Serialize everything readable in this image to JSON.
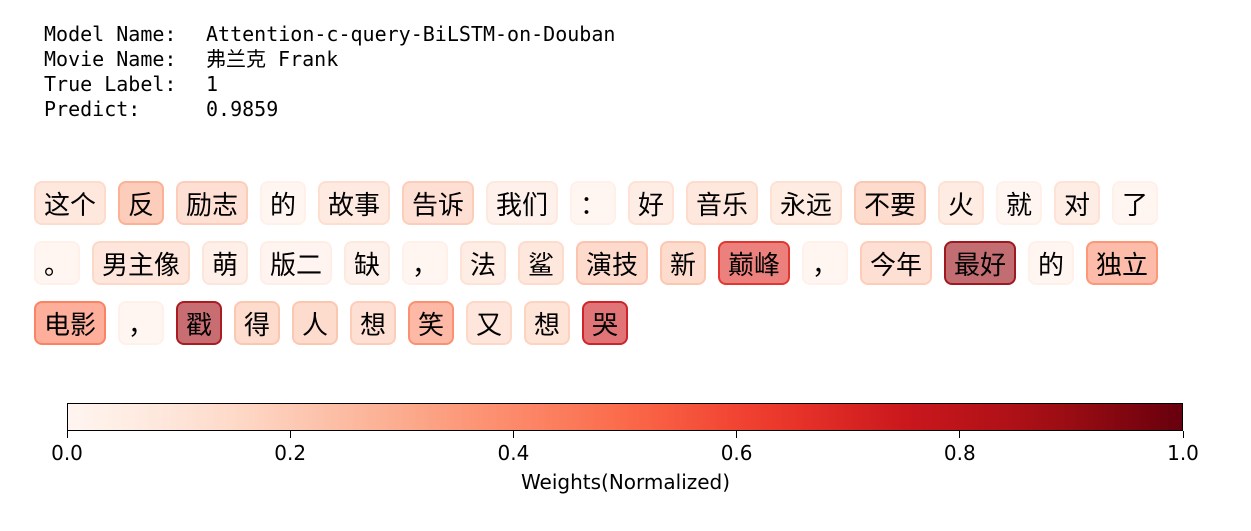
{
  "header": {
    "rows": [
      {
        "key": "Model Name:",
        "value": "Attention-c-query-BiLSTM-on-Douban"
      },
      {
        "key": "Movie Name:",
        "value": "弗兰克 Frank"
      },
      {
        "key": "True Label:",
        "value": "1"
      },
      {
        "key": "Predict:",
        "value": "0.9859"
      }
    ]
  },
  "colors": {
    "cmap": [
      "#fff5f0",
      "#fee0d2",
      "#fcbba1",
      "#fc9272",
      "#fb6a4a",
      "#ef3b2c",
      "#cb181d",
      "#a50f15",
      "#67000d"
    ]
  },
  "chart_data": {
    "type": "heatmap",
    "tokens": [
      {
        "text": "这个",
        "weight": 0.15
      },
      {
        "text": "反",
        "weight": 0.3
      },
      {
        "text": "励志",
        "weight": 0.2
      },
      {
        "text": "的",
        "weight": 0.03
      },
      {
        "text": "故事",
        "weight": 0.14
      },
      {
        "text": "告诉",
        "weight": 0.2
      },
      {
        "text": "我们",
        "weight": 0.08
      },
      {
        "text": "：",
        "weight": 0.03
      },
      {
        "text": "好",
        "weight": 0.12
      },
      {
        "text": "音乐",
        "weight": 0.15
      },
      {
        "text": "永远",
        "weight": 0.13
      },
      {
        "text": "不要",
        "weight": 0.22
      },
      {
        "text": "火",
        "weight": 0.13
      },
      {
        "text": "就",
        "weight": 0.03
      },
      {
        "text": "对",
        "weight": 0.12
      },
      {
        "text": "了",
        "weight": 0.03
      },
      {
        "text": "。",
        "weight": 0.03
      },
      {
        "text": "男主像",
        "weight": 0.16
      },
      {
        "text": "萌",
        "weight": 0.1
      },
      {
        "text": "版二",
        "weight": 0.05
      },
      {
        "text": "缺",
        "weight": 0.08
      },
      {
        "text": "，",
        "weight": 0.03
      },
      {
        "text": "法",
        "weight": 0.12
      },
      {
        "text": "鲨",
        "weight": 0.15
      },
      {
        "text": "演技",
        "weight": 0.23
      },
      {
        "text": "新",
        "weight": 0.22
      },
      {
        "text": "巅峰",
        "weight": 0.68
      },
      {
        "text": "，",
        "weight": 0.03
      },
      {
        "text": "今年",
        "weight": 0.2
      },
      {
        "text": "最好",
        "weight": 0.9
      },
      {
        "text": "的",
        "weight": 0.03
      },
      {
        "text": "独立",
        "weight": 0.38
      },
      {
        "text": "电影",
        "weight": 0.45
      },
      {
        "text": "，",
        "weight": 0.03
      },
      {
        "text": "戳",
        "weight": 0.88
      },
      {
        "text": "得",
        "weight": 0.22
      },
      {
        "text": "人",
        "weight": 0.22
      },
      {
        "text": "想",
        "weight": 0.2
      },
      {
        "text": "笑",
        "weight": 0.4
      },
      {
        "text": "又",
        "weight": 0.16
      },
      {
        "text": "想",
        "weight": 0.18
      },
      {
        "text": "哭",
        "weight": 0.75
      }
    ],
    "colorbar": {
      "range": [
        0.0,
        1.0
      ],
      "ticks": [
        "0.0",
        "0.2",
        "0.4",
        "0.6",
        "0.8",
        "1.0"
      ],
      "label": "Weights(Normalized)"
    }
  }
}
